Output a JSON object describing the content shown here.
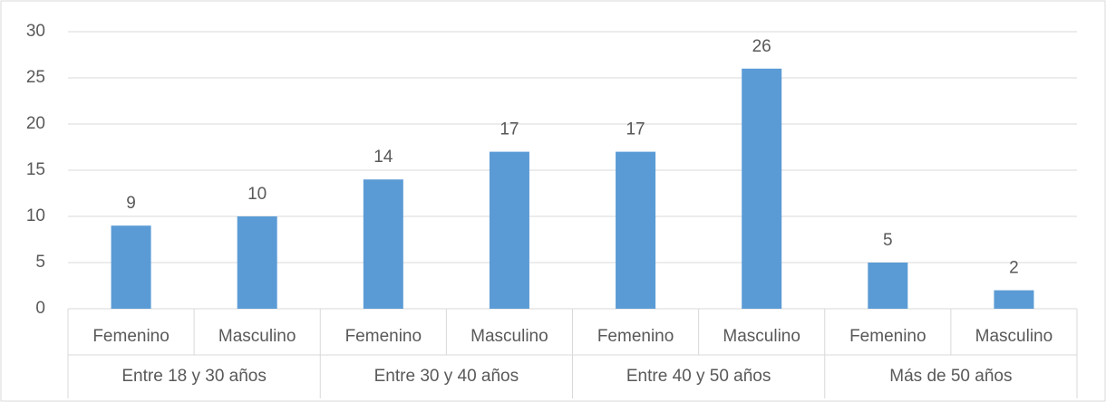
{
  "chart_data": {
    "type": "bar",
    "categories": [
      "Femenino",
      "Masculino",
      "Femenino",
      "Masculino",
      "Femenino",
      "Masculino",
      "Femenino",
      "Masculino"
    ],
    "groups": [
      "Entre 18 y 30 años",
      "Entre 30 y 40 años",
      "Entre 40 y 50 años",
      "Más de 50 años"
    ],
    "values": [
      9,
      10,
      14,
      17,
      17,
      26,
      5,
      2
    ],
    "color": "#5b9bd5",
    "ylim": [
      0,
      30
    ],
    "yticks": [
      0,
      5,
      10,
      15,
      20,
      25,
      30
    ],
    "grid": true
  }
}
